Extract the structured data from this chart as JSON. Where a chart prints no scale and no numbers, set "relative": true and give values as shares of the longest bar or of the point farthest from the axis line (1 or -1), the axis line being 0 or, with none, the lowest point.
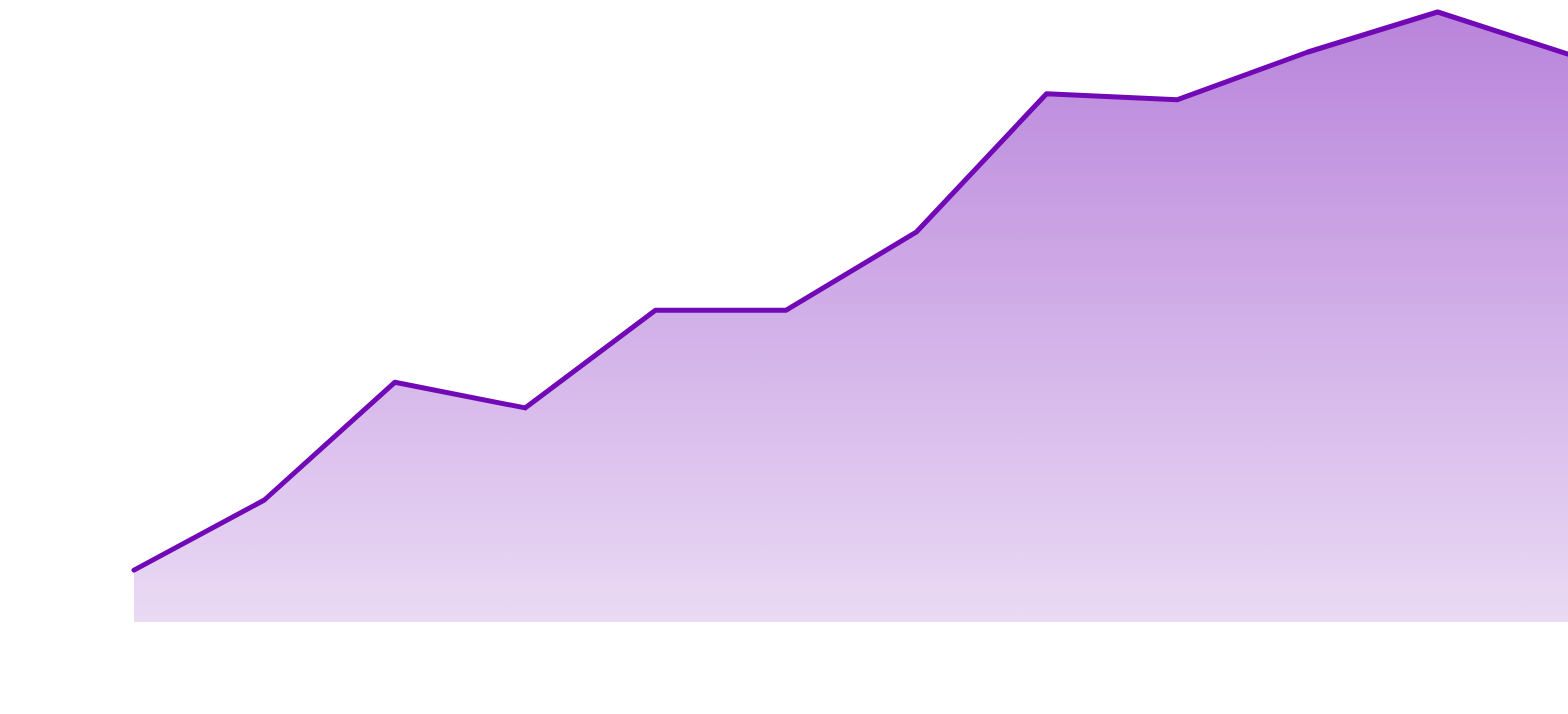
{
  "chart_data": {
    "type": "area",
    "relative": true,
    "categories": [
      null,
      null,
      null,
      null,
      null,
      null,
      null,
      null,
      null,
      null,
      null,
      null
    ],
    "series": [
      {
        "color": "#7209b7",
        "values": [
          0.085,
          0.2,
          0.393,
          0.351,
          0.511,
          0.511,
          0.639,
          0.866,
          0.856,
          0.934,
          1,
          0.931
        ]
      }
    ]
  }
}
